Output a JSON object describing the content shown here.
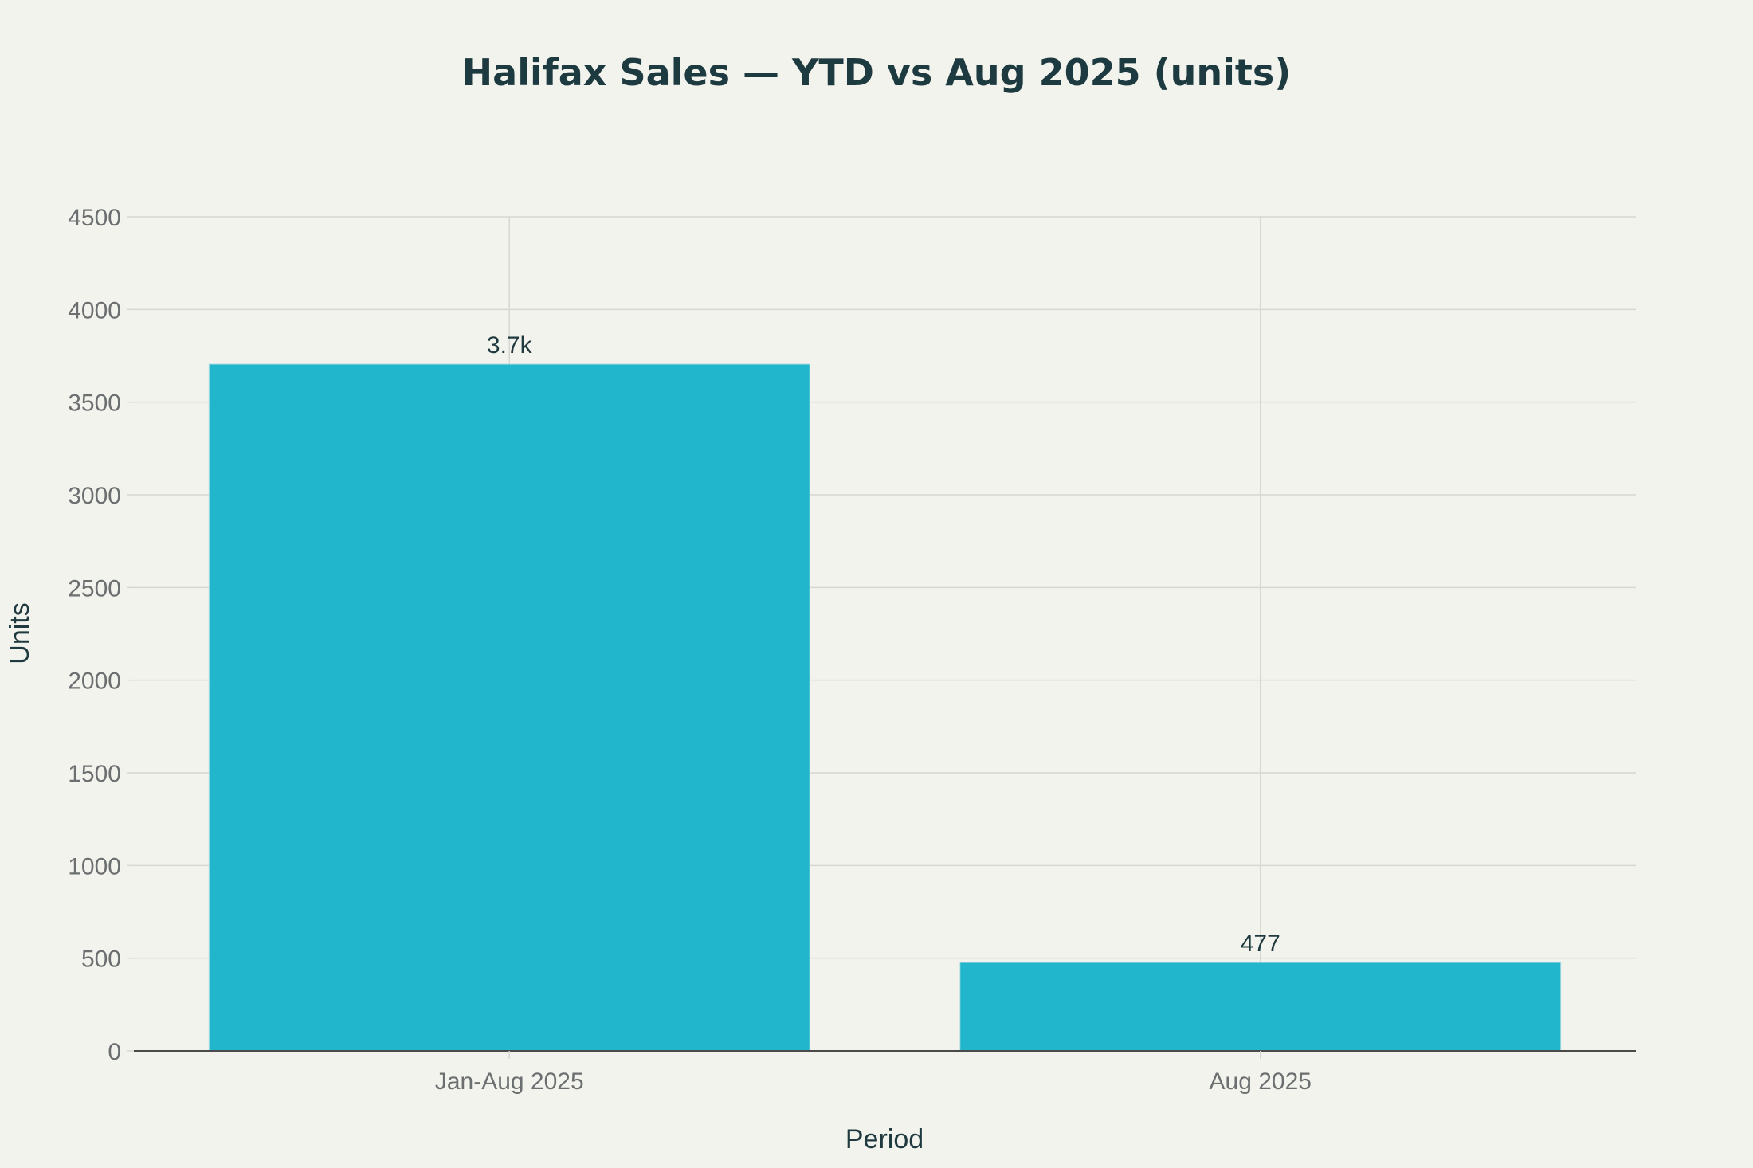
{
  "chart_data": {
    "type": "bar",
    "title": "Halifax Sales — YTD vs Aug 2025 (units)",
    "xlabel": "Period",
    "ylabel": "Units",
    "categories": [
      "Jan-Aug 2025",
      "Aug 2025"
    ],
    "values": [
      3705,
      477
    ],
    "data_labels": [
      "3.7k",
      "477"
    ],
    "ylim": [
      0,
      4500
    ],
    "yticks": [
      0,
      500,
      1000,
      1500,
      2000,
      2500,
      3000,
      3500,
      4000,
      4500
    ],
    "grid": true,
    "legend": "none",
    "colors": {
      "bar": "#21b6cc",
      "background": "#f3f3ee",
      "grid": "#d6d6d2",
      "axis": "#4a4a4a"
    }
  }
}
